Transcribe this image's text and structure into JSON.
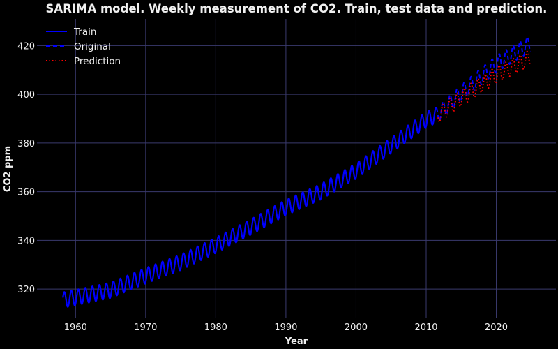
{
  "chart_data": {
    "type": "line",
    "title": "SARIMA model. Weekly measurement of CO2. Train, test data and prediction.",
    "xlabel": "Year",
    "ylabel": "CO2 ppm",
    "xlim": [
      1954.5,
      2028.5
    ],
    "ylim": [
      308,
      431
    ],
    "xticks": [
      1960,
      1970,
      1980,
      1990,
      2000,
      2010,
      2020
    ],
    "yticks": [
      320,
      340,
      360,
      380,
      400,
      420
    ],
    "grid": true,
    "legend_position": "top-left",
    "background": "#000000",
    "series": [
      {
        "name": "Train",
        "color": "#0000ff",
        "style": "solid",
        "x_range": [
          1958.2,
          2011.5
        ],
        "trend_points": [
          [
            1958.2,
            315.5
          ],
          [
            1960,
            316.5
          ],
          [
            1965,
            319.5
          ],
          [
            1970,
            325.5
          ],
          [
            1975,
            331
          ],
          [
            1980,
            338
          ],
          [
            1985,
            345.5
          ],
          [
            1990,
            353.5
          ],
          [
            1995,
            360
          ],
          [
            2000,
            368.5
          ],
          [
            2005,
            379
          ],
          [
            2010,
            389.5
          ],
          [
            2011.5,
            391.5
          ]
        ],
        "seasonal_amplitude": 3.2
      },
      {
        "name": "Original",
        "color": "#0000ff",
        "style": "dashed",
        "x_range": [
          2011.5,
          2024.9
        ],
        "trend_points": [
          [
            2011.5,
            391.5
          ],
          [
            2015,
            400.5
          ],
          [
            2020,
            412.5
          ],
          [
            2024.9,
            421
          ]
        ],
        "seasonal_amplitude": 3.4
      },
      {
        "name": "Prediction",
        "color": "#ff0000",
        "style": "dotted",
        "x_range": [
          2011.7,
          2024.9
        ],
        "trend_points": [
          [
            2011.7,
            391.5
          ],
          [
            2015,
            398.5
          ],
          [
            2020,
            408
          ],
          [
            2024.9,
            415
          ]
        ],
        "seasonal_amplitude": 3.3
      }
    ]
  }
}
